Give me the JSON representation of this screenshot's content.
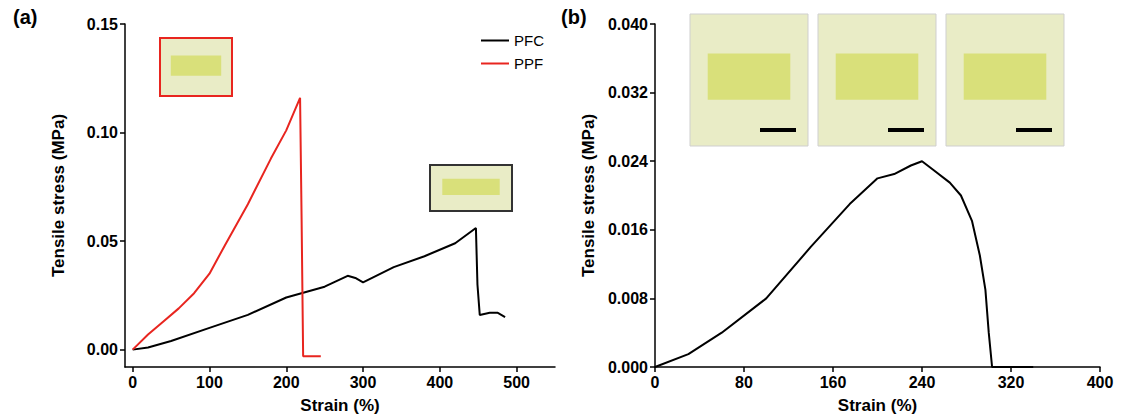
{
  "chart_data": [
    {
      "type": "line",
      "title": "(a)",
      "xlabel": "Strain (%)",
      "ylabel": "Tensile stress (MPa)",
      "xlim": [
        -10,
        550
      ],
      "xticks": [
        0,
        100,
        200,
        300,
        400,
        500
      ],
      "ylim": [
        -0.008,
        0.15
      ],
      "yticks": [
        {
          "value": 0,
          "label": "0.00"
        },
        {
          "value": 0.05,
          "label": "0.05"
        },
        {
          "value": 0.1,
          "label": "0.10"
        },
        {
          "value": 0.15,
          "label": "0.15"
        }
      ],
      "grid": false,
      "legend": "top-right",
      "series": [
        {
          "name": "PFC",
          "color": "#000000",
          "x": [
            0,
            20,
            50,
            100,
            150,
            200,
            250,
            280,
            290,
            300,
            340,
            380,
            420,
            447,
            449,
            452,
            465,
            475,
            485
          ],
          "values": [
            0,
            0.001,
            0.004,
            0.01,
            0.016,
            0.024,
            0.029,
            0.034,
            0.033,
            0.031,
            0.038,
            0.043,
            0.049,
            0.056,
            0.03,
            0.016,
            0.017,
            0.017,
            0.015
          ]
        },
        {
          "name": "PPF",
          "color": "#e8251f",
          "x": [
            0,
            20,
            40,
            60,
            80,
            100,
            120,
            150,
            180,
            200,
            218,
            220,
            222,
            235,
            245
          ],
          "values": [
            0,
            0.007,
            0.013,
            0.019,
            0.026,
            0.035,
            0.048,
            0.067,
            0.088,
            0.101,
            0.116,
            0.06,
            -0.003,
            -0.003,
            -0.003
          ]
        }
      ]
    },
    {
      "type": "line",
      "title": "(b)",
      "xlabel": "Strain (%)",
      "ylabel": "Tensile stress (MPa)",
      "xlim": [
        0,
        400
      ],
      "xticks": [
        0,
        80,
        160,
        240,
        320,
        400
      ],
      "ylim": [
        0,
        0.04
      ],
      "yticks": [
        {
          "value": 0,
          "label": "0.000"
        },
        {
          "value": 0.008,
          "label": "0.008"
        },
        {
          "value": 0.016,
          "label": "0.016"
        },
        {
          "value": 0.024,
          "label": "0.024"
        },
        {
          "value": 0.032,
          "label": "0.032"
        },
        {
          "value": 0.04,
          "label": "0.040"
        }
      ],
      "grid": false,
      "color": "#000000",
      "x": [
        0,
        30,
        60,
        100,
        140,
        175,
        200,
        215,
        230,
        240,
        250,
        265,
        275,
        285,
        292,
        297,
        300,
        303,
        320,
        340
      ],
      "values": [
        0,
        0.0015,
        0.004,
        0.008,
        0.014,
        0.019,
        0.022,
        0.0225,
        0.0235,
        0.024,
        0.023,
        0.0215,
        0.02,
        0.017,
        0.013,
        0.009,
        0.004,
        0,
        0,
        0
      ]
    }
  ]
}
